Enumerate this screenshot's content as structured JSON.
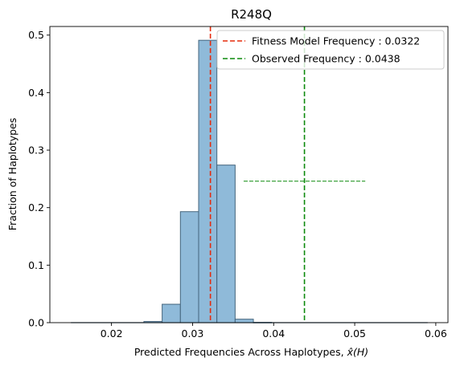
{
  "chart_data": {
    "type": "bar",
    "title": "R248Q",
    "xlabel": "Predicted Frequencies Across Haplotypes, ",
    "xlabel_math": "x̂(H)",
    "ylabel": "Fraction of Haplotypes",
    "xlim": [
      0.0124,
      0.0615
    ],
    "ylim": [
      0,
      0.515
    ],
    "x_ticks": [
      0.02,
      0.03,
      0.04,
      0.05,
      0.06
    ],
    "x_tick_labels": [
      "0.02",
      "0.03",
      "0.04",
      "0.05",
      "0.06"
    ],
    "y_ticks": [
      0.0,
      0.1,
      0.2,
      0.3,
      0.4,
      0.5
    ],
    "y_tick_labels": [
      "0.0",
      "0.1",
      "0.2",
      "0.3",
      "0.4",
      "0.5"
    ],
    "bin_width": 0.00225,
    "bins": [
      {
        "x0": 0.024,
        "value": 0.002
      },
      {
        "x0": 0.02625,
        "value": 0.032
      },
      {
        "x0": 0.0285,
        "value": 0.193
      },
      {
        "x0": 0.03075,
        "value": 0.491
      },
      {
        "x0": 0.033,
        "value": 0.274
      },
      {
        "x0": 0.03525,
        "value": 0.006
      },
      {
        "x0": 0.0375,
        "value": 0.0005
      }
    ],
    "baseline": {
      "x_start": 0.015,
      "x_end": 0.059
    },
    "bar_color": "#8fbad9",
    "bar_edge_color": "#44657d",
    "vlines": [
      {
        "name": "Fitness Model Frequency : 0.0322",
        "x": 0.0322,
        "color": "#e52b0b",
        "style": "dashed"
      },
      {
        "name": "Observed Frequency : 0.0438",
        "x": 0.0438,
        "color": "#0b8a0b",
        "style": "dashed"
      }
    ],
    "error_bar": {
      "x_start": 0.0363,
      "x_end": 0.0513,
      "y": 0.246,
      "color": "#0b8a0b"
    },
    "legend_position": "top-right"
  }
}
